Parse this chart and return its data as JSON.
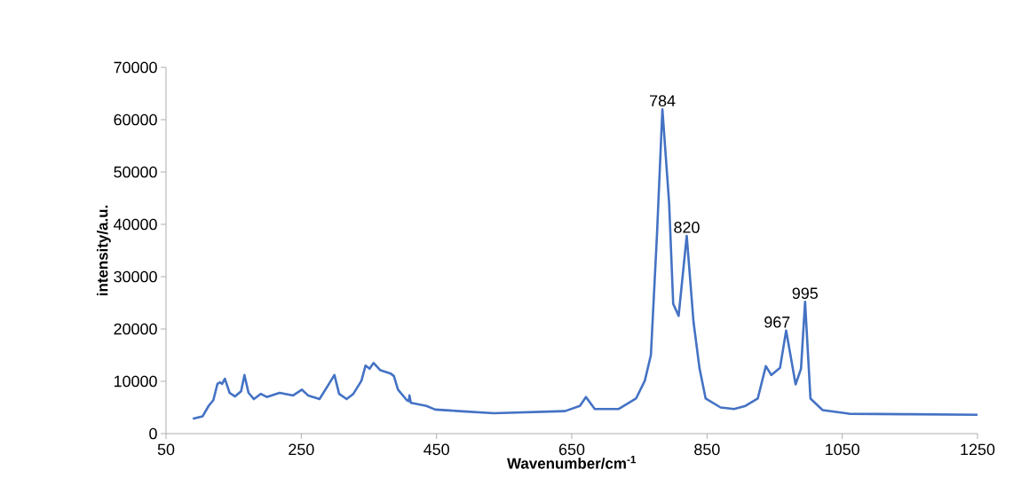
{
  "chart_data": {
    "type": "line",
    "xlabel": "Wavenumber/cm$^{-1}$",
    "ylabel": "intensity/a.u.",
    "xlim": [
      50,
      1250
    ],
    "xticks": [
      50,
      250,
      450,
      650,
      850,
      1050,
      1250
    ],
    "ylim": [
      0,
      70000
    ],
    "yticks": [
      0,
      10000,
      20000,
      30000,
      40000,
      50000,
      60000,
      70000
    ],
    "marker": "none",
    "line_style": "solid",
    "series": [
      {
        "color": "#4472c4",
        "x": [
          91,
          104,
          113,
          120,
          126,
          130,
          133,
          137,
          144,
          152,
          161,
          166,
          172,
          180,
          190,
          199,
          218,
          238,
          251,
          260,
          277,
          290,
          299,
          306,
          317,
          327,
          339,
          345,
          351,
          357,
          367,
          382,
          387,
          393,
          406,
          409,
          410,
          412,
          435,
          448,
          483,
          535,
          640,
          662,
          671,
          684,
          719,
          745,
          758,
          767,
          776,
          784,
          794,
          800,
          808,
          820,
          830,
          839,
          848,
          870,
          890,
          907,
          925,
          937,
          945,
          958,
          967,
          981,
          989,
          995,
          1003,
          1021,
          1060,
          1150,
          1249
        ],
        "values": [
          2900,
          3300,
          5300,
          6400,
          9500,
          9800,
          9500,
          10500,
          7800,
          7100,
          8100,
          11200,
          7800,
          6600,
          7600,
          7000,
          7800,
          7300,
          8400,
          7300,
          6600,
          9300,
          11200,
          7600,
          6600,
          7600,
          10100,
          13000,
          12400,
          13500,
          12100,
          11500,
          11000,
          8400,
          6400,
          6200,
          7300,
          5900,
          5300,
          4600,
          4300,
          3900,
          4300,
          5300,
          7000,
          4700,
          4700,
          6700,
          10100,
          15000,
          38000,
          62000,
          44000,
          24800,
          22500,
          37800,
          21400,
          12400,
          6700,
          5000,
          4700,
          5300,
          6700,
          12900,
          11200,
          12600,
          19700,
          9400,
          12400,
          25200,
          6700,
          4500,
          3800,
          3700,
          3600
        ]
      }
    ],
    "annotations": [
      {
        "text": "784",
        "x": 784,
        "y": 62000
      },
      {
        "text": "820",
        "x": 820,
        "y": 37800
      },
      {
        "text": "967",
        "x": 967,
        "y": 19700
      },
      {
        "text": "995",
        "x": 995,
        "y": 25200
      }
    ]
  }
}
